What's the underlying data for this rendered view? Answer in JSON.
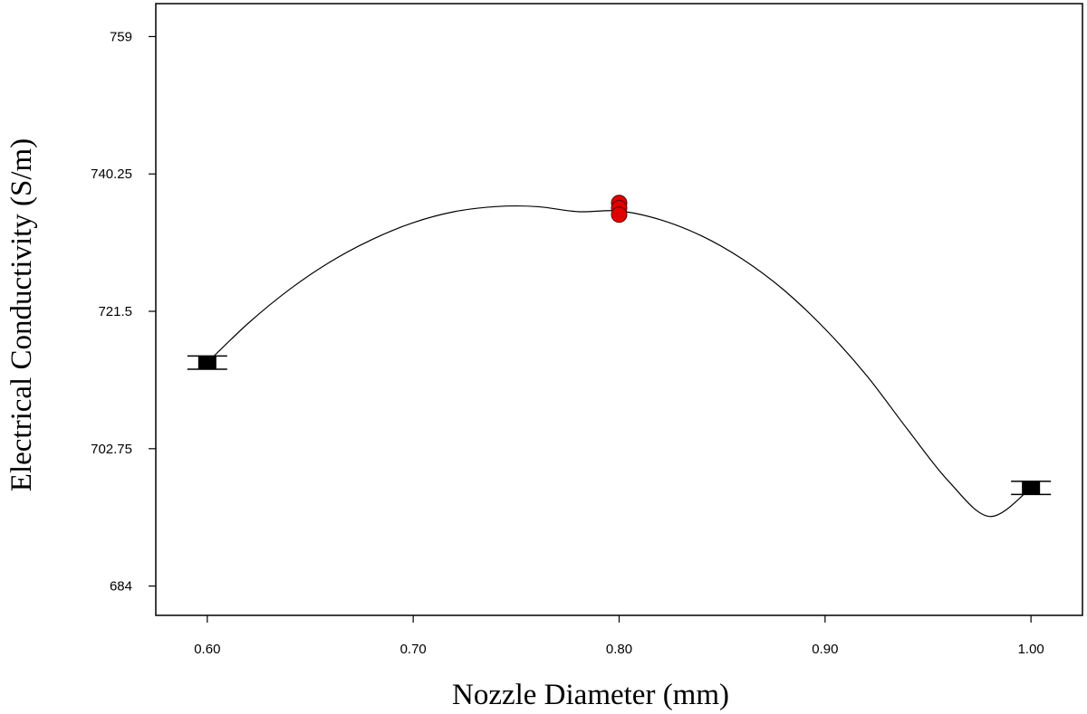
{
  "chart_data": {
    "type": "line",
    "title": "",
    "xlabel": "Nozzle Diameter (mm)",
    "ylabel": "Electrical Conductivity (S/m)",
    "xlim": [
      0.575,
      1.025
    ],
    "ylim": [
      680,
      763.5
    ],
    "x_ticks": [
      "0.60",
      "0.70",
      "0.80",
      "0.90",
      "1.00"
    ],
    "y_ticks": [
      "684",
      "702.75",
      "721.5",
      "740.25",
      "759"
    ],
    "grid": false,
    "fit_curve": {
      "x": [
        0.6,
        0.62,
        0.64,
        0.66,
        0.68,
        0.7,
        0.72,
        0.74,
        0.76,
        0.78,
        0.8,
        0.82,
        0.84,
        0.86,
        0.88,
        0.9,
        0.92,
        0.94,
        0.96,
        0.98,
        1.0
      ],
      "y": [
        714.5,
        719.9,
        724.5,
        728.3,
        731.3,
        733.6,
        735.1,
        735.8,
        735.8,
        735.1,
        735.2,
        734.0,
        731.8,
        728.6,
        724.4,
        719.1,
        712.8,
        705.4,
        698.3,
        693.5,
        697.4
      ]
    },
    "design_points": [
      {
        "x": 0.8,
        "y": 736.3,
        "color": "#e00000"
      },
      {
        "x": 0.8,
        "y": 735.6,
        "color": "#e00000"
      },
      {
        "x": 0.8,
        "y": 734.7,
        "color": "#e00000"
      }
    ],
    "interval_points": [
      {
        "x": 0.6,
        "y": 714.5,
        "lower": 713.6,
        "upper": 715.4
      },
      {
        "x": 1.0,
        "y": 697.4,
        "lower": 696.5,
        "upper": 698.3
      }
    ],
    "colors": {
      "design_point": "#e00000",
      "line": "#000000"
    }
  }
}
